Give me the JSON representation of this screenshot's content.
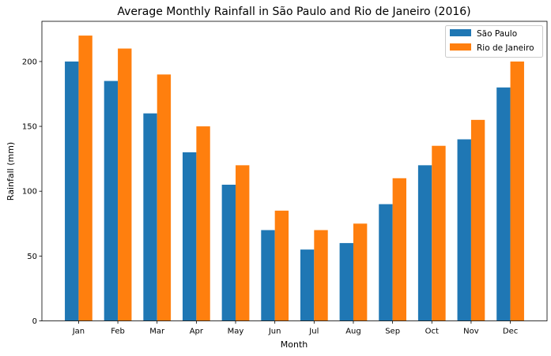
{
  "chart_data": {
    "type": "bar",
    "title": "Average Monthly Rainfall in São Paulo and Rio de Janeiro (2016)",
    "xlabel": "Month",
    "ylabel": "Rainfall (mm)",
    "categories": [
      "Jan",
      "Feb",
      "Mar",
      "Apr",
      "May",
      "Jun",
      "Jul",
      "Aug",
      "Sep",
      "Oct",
      "Nov",
      "Dec"
    ],
    "series": [
      {
        "name": "São Paulo",
        "color": "#1f77b4",
        "values": [
          200,
          185,
          160,
          130,
          105,
          70,
          55,
          60,
          90,
          120,
          140,
          180
        ]
      },
      {
        "name": "Rio de Janeiro",
        "color": "#ff7f0e",
        "values": [
          220,
          210,
          190,
          150,
          120,
          85,
          70,
          75,
          110,
          135,
          155,
          200
        ]
      }
    ],
    "ylim": [
      0,
      231
    ],
    "yticks": [
      0,
      50,
      100,
      150,
      200
    ],
    "grid": false,
    "legend": "top-right"
  }
}
